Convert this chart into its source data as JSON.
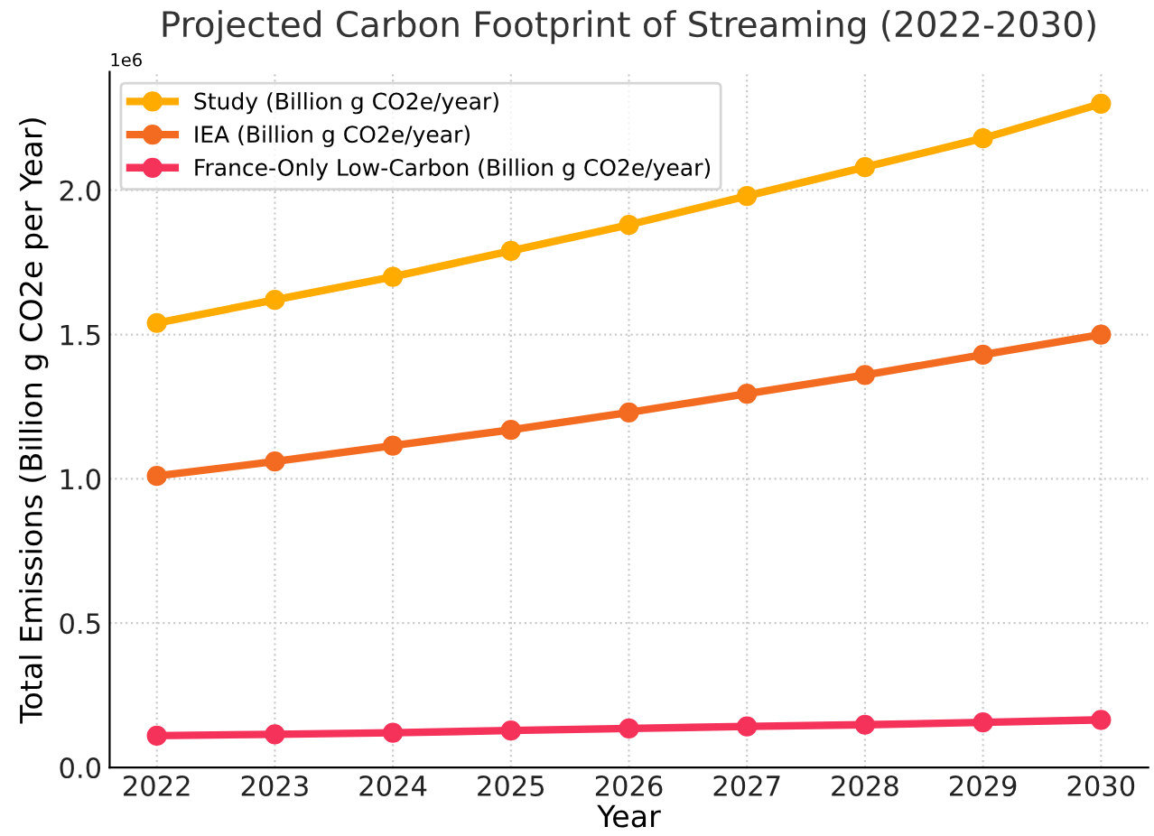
{
  "chart_data": {
    "type": "line",
    "title": "Projected Carbon Footprint of Streaming (2022-2030)",
    "xlabel": "Year",
    "ylabel": "Total Emissions (Billion g CO2e per Year)",
    "x": [
      2022,
      2023,
      2024,
      2025,
      2026,
      2027,
      2028,
      2029,
      2030
    ],
    "series": [
      {
        "name": "Study (Billion g CO2e/year)",
        "color": "#ffab00",
        "values": [
          1.54,
          1.62,
          1.7,
          1.79,
          1.88,
          1.98,
          2.08,
          2.18,
          2.3
        ]
      },
      {
        "name": "IEA (Billion g CO2e/year)",
        "color": "#f26b21",
        "values": [
          1.01,
          1.06,
          1.115,
          1.17,
          1.23,
          1.295,
          1.36,
          1.43,
          1.5
        ]
      },
      {
        "name": "France-Only Low-Carbon (Billion g CO2e/year)",
        "color": "#f5325a",
        "values": [
          0.11,
          0.115,
          0.12,
          0.128,
          0.135,
          0.142,
          0.148,
          0.156,
          0.165
        ]
      }
    ],
    "xlim": [
      2021.6,
      2030.4
    ],
    "ylim": [
      0,
      2.41
    ],
    "xticks": [
      2022,
      2023,
      2024,
      2025,
      2026,
      2027,
      2028,
      2029,
      2030
    ],
    "yticks": [
      {
        "value": 0,
        "label": "0.0"
      },
      0.5,
      {
        "value": 1,
        "label": "1.0"
      },
      1.5,
      {
        "value": 2,
        "label": "2.0"
      }
    ],
    "annotations": [
      "1e6"
    ],
    "grid": true,
    "legend": "top left",
    "marker": "circle",
    "line_style": "solid"
  }
}
